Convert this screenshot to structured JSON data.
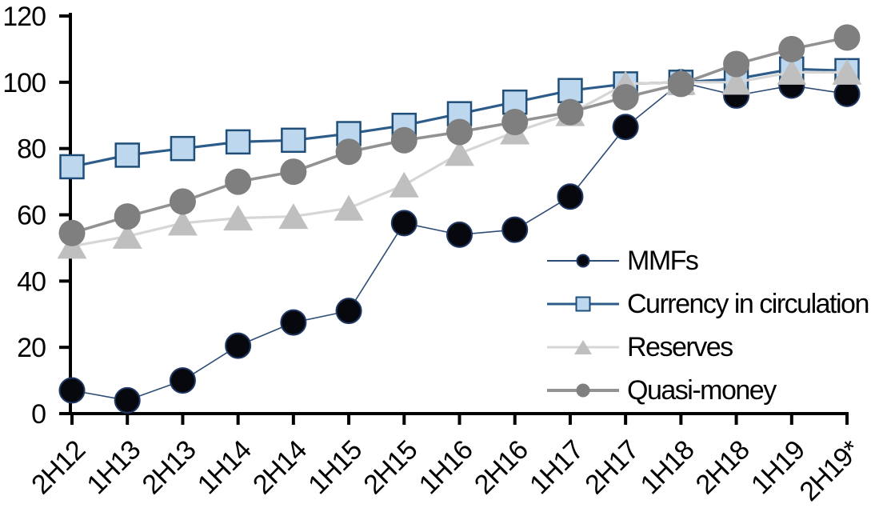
{
  "chart_data": {
    "type": "line",
    "title": "",
    "categories": [
      "2H12",
      "1H13",
      "2H13",
      "1H14",
      "2H14",
      "1H15",
      "2H15",
      "1H16",
      "2H16",
      "1H17",
      "2H17",
      "1H18",
      "2H18",
      "1H19",
      "2H19*"
    ],
    "series": [
      {
        "name": "MMFs",
        "marker": "circle",
        "marker_size": 31,
        "marker_fill": "#07070E",
        "marker_stroke": "#1F3864",
        "marker_stroke_width": 2,
        "line_color": "#2E4D76",
        "line_width": 1.6,
        "values": [
          7,
          4,
          10,
          20.5,
          27.5,
          31,
          57.5,
          54,
          55.5,
          65.5,
          86.5,
          100,
          96,
          99,
          96.5
        ]
      },
      {
        "name": "Currency in circulation",
        "marker": "square",
        "marker_size": 29,
        "marker_fill": "#BDD7EE",
        "marker_stroke": "#1F4E79",
        "marker_stroke_width": 2.5,
        "line_color": "#2E5C8A",
        "line_width": 3.2,
        "values": [
          74.5,
          78,
          80,
          82,
          82.5,
          84.5,
          87,
          90.5,
          94,
          97.5,
          99.5,
          100,
          101,
          104,
          103.5
        ]
      },
      {
        "name": "Reserves",
        "marker": "triangle",
        "marker_size": 33,
        "marker_fill": "#BFBFBF",
        "marker_stroke": "none",
        "marker_stroke_width": 0,
        "line_color": "#D6D6D6",
        "line_width": 3.2,
        "values": [
          50.5,
          53.5,
          57.5,
          59,
          59.5,
          62,
          69,
          78.5,
          85,
          90.5,
          99.5,
          100,
          100,
          103,
          103
        ]
      },
      {
        "name": "Quasi-money",
        "marker": "circle",
        "marker_size": 33,
        "marker_fill": "#7F7F7F",
        "marker_stroke": "none",
        "marker_stroke_width": 0,
        "line_color": "#929292",
        "line_width": 3.6,
        "values": [
          54.5,
          59.5,
          64,
          70,
          73,
          79,
          82.5,
          85,
          88,
          91,
          95.5,
          99.5,
          105.5,
          110,
          113.5
        ]
      }
    ],
    "y_axis": {
      "min": 0,
      "max": 120,
      "step": 20,
      "tick_labels": [
        "0",
        "20",
        "40",
        "60",
        "80",
        "100",
        "120"
      ]
    },
    "x_axis": {
      "tick_labels": [
        "2H12",
        "1H13",
        "2H13",
        "1H14",
        "2H14",
        "1H15",
        "2H15",
        "1H16",
        "2H16",
        "1H17",
        "2H17",
        "1H18",
        "2H18",
        "1H19",
        "2H19*"
      ],
      "label_rotation_deg": -45
    },
    "legend": {
      "position": "inside-right",
      "items": [
        "MMFs",
        "Currency in circulation",
        "Reserves",
        "Quasi-money"
      ]
    },
    "grid": false,
    "axis_color": "#000000",
    "background": "#FFFFFF"
  }
}
